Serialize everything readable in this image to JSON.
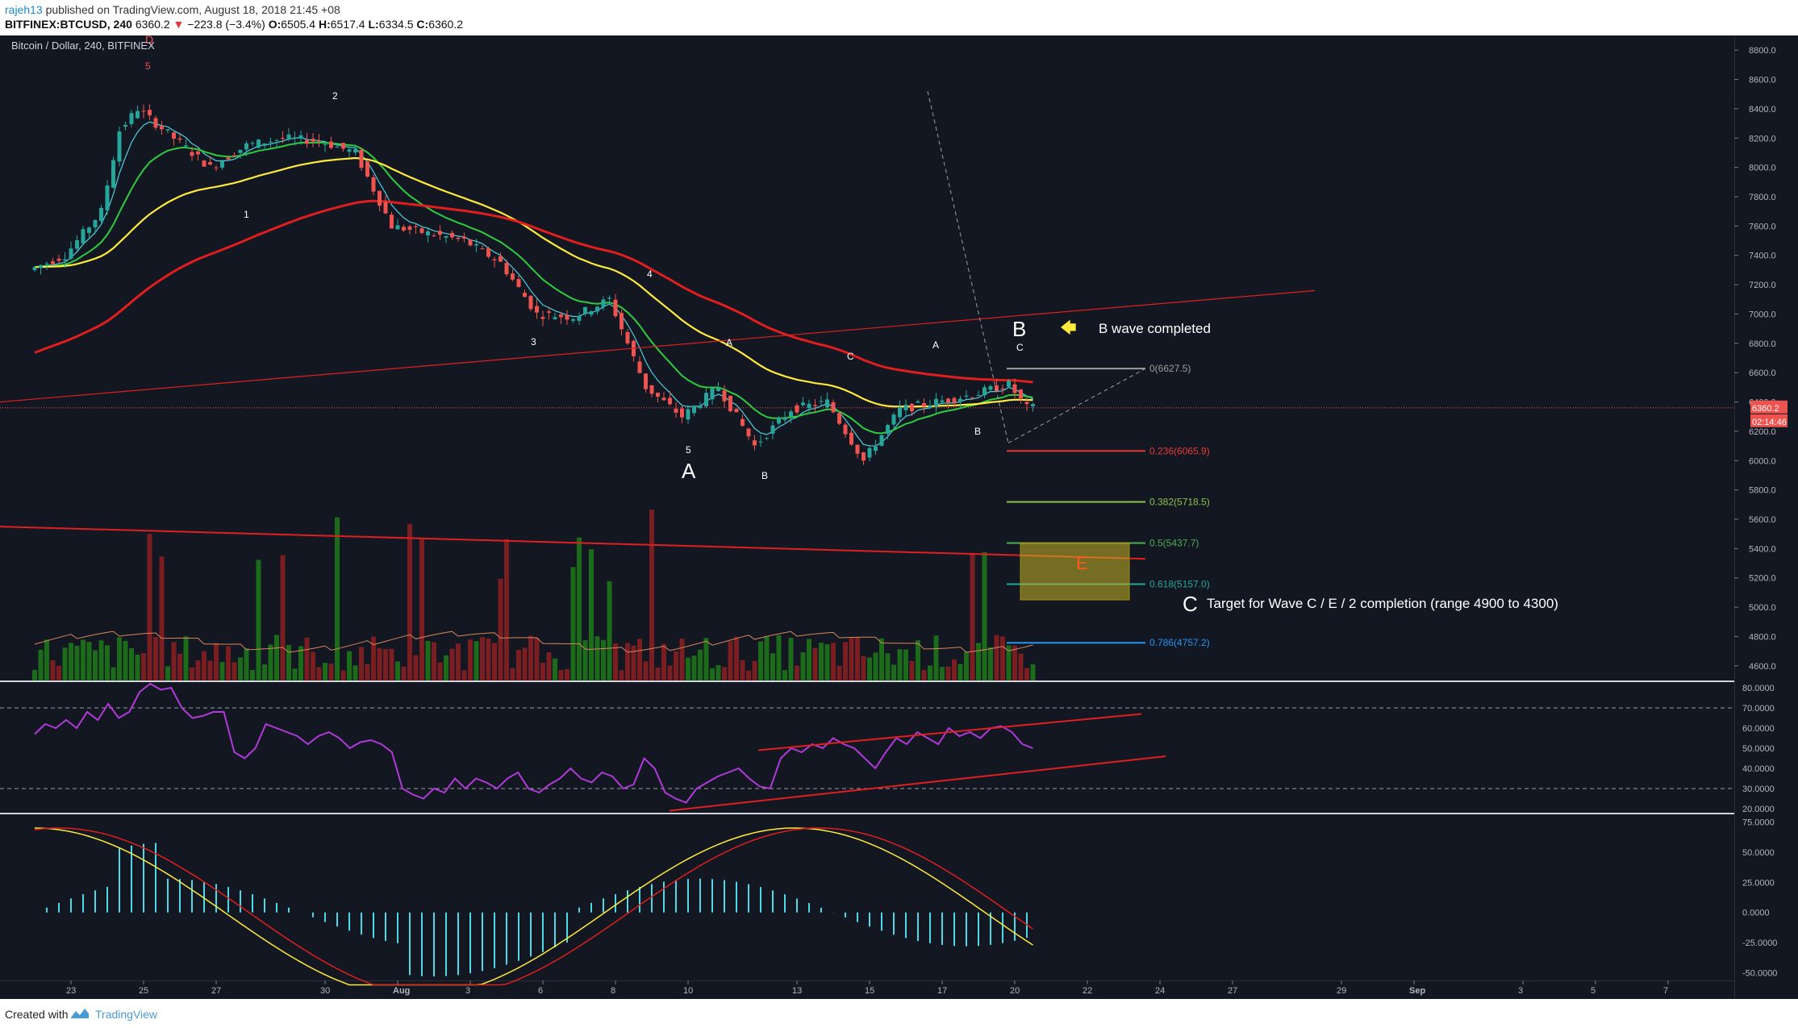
{
  "header": {
    "user": "rajeh13",
    "published": "published on TradingView.com, August 18, 2018 21:45 +08",
    "symbol": "BITFINEX:BTCUSD, 240",
    "last": "6360.2",
    "change": "−223.8 (−3.4%)",
    "o_label": "O:",
    "o": "6505.4",
    "h_label": "H:",
    "h": "6517.4",
    "l_label": "L:",
    "l": "6334.5",
    "c_label": "C:",
    "c": "6360.2"
  },
  "chart_title": "Bitcoin / Dollar, 240, BITFINEX",
  "footer": {
    "created": "Created with",
    "brand": "TradingView"
  },
  "colors": {
    "background": "#131722",
    "up": "#26a69a",
    "down": "#ef5350",
    "ma_fast": "#4dd0e1",
    "ma_green": "#2ecc40",
    "ma_yellow": "#ffeb3b",
    "ma_red": "#e01e1e",
    "rsi": "#b03ad8",
    "trendline": "#e02020",
    "macd_hist": "#4dd9e8",
    "target_box": "#c8b428"
  },
  "chart_data": [
    {
      "type": "candlestick",
      "pane": "price",
      "ylim": [
        4500,
        8900
      ],
      "y_ticks": [
        "8800.0",
        "8600.0",
        "8400.0",
        "8200.0",
        "8000.0",
        "7800.0",
        "7600.0",
        "7400.0",
        "7200.0",
        "7000.0",
        "6800.0",
        "6600.0",
        "6400.0",
        "6200.0",
        "6000.0",
        "5800.0",
        "5600.0",
        "5400.0",
        "5200.0",
        "5000.0",
        "4800.0",
        "4600.0"
      ],
      "x_ticks": [
        "23",
        "25",
        "27",
        "30",
        "Aug",
        "3",
        "6",
        "8",
        "10",
        "13",
        "15",
        "17",
        "20",
        "22",
        "24",
        "27",
        "29",
        "Sep",
        "3",
        "5",
        "7"
      ],
      "current_price": "6360.2",
      "countdown": "02:14:46",
      "price_path": [
        {
          "d": "Jul 22",
          "p": 7300
        },
        {
          "d": "Jul 23",
          "p": 7400
        },
        {
          "d": "Jul 24",
          "p": 7700
        },
        {
          "d": "Jul 24.5",
          "p": 8250
        },
        {
          "d": "Jul 25",
          "p": 8400
        },
        {
          "d": "Jul 26",
          "p": 8200
        },
        {
          "d": "Jul 27",
          "p": 8000
        },
        {
          "d": "Jul 28",
          "p": 8150
        },
        {
          "d": "Jul 29",
          "p": 8200
        },
        {
          "d": "Jul 30",
          "p": 8180
        },
        {
          "d": "Jul 31",
          "p": 8100
        },
        {
          "d": "Aug 1",
          "p": 7600
        },
        {
          "d": "Aug 2",
          "p": 7550
        },
        {
          "d": "Aug 3",
          "p": 7500
        },
        {
          "d": "Aug 4",
          "p": 7350
        },
        {
          "d": "Aug 5",
          "p": 7000
        },
        {
          "d": "Aug 6",
          "p": 6980
        },
        {
          "d": "Aug 7",
          "p": 7100
        },
        {
          "d": "Aug 8",
          "p": 6500
        },
        {
          "d": "Aug 9",
          "p": 6300
        },
        {
          "d": "Aug 10",
          "p": 6500
        },
        {
          "d": "Aug 11",
          "p": 6100
        },
        {
          "d": "Aug 12",
          "p": 6350
        },
        {
          "d": "Aug 13",
          "p": 6400
        },
        {
          "d": "Aug 14",
          "p": 6000
        },
        {
          "d": "Aug 15",
          "p": 6350
        },
        {
          "d": "Aug 16",
          "p": 6400
        },
        {
          "d": "Aug 17",
          "p": 6450
        },
        {
          "d": "Aug 18",
          "p": 6520
        },
        {
          "d": "Aug 18.5",
          "p": 6360
        }
      ],
      "fibonacci": [
        {
          "label": "0(6627.5)",
          "value": 6627.5,
          "color": "#9e9e9e"
        },
        {
          "label": "0.236(6065.9)",
          "value": 6065.9,
          "color": "#e53935"
        },
        {
          "label": "0.382(5718.5)",
          "value": 5718.5,
          "color": "#8bc34a"
        },
        {
          "label": "0.5(5437.7)",
          "value": 5437.7,
          "color": "#4caf50"
        },
        {
          "label": "0.618(5157.0)",
          "value": 5157.0,
          "color": "#26a69a"
        },
        {
          "label": "0.786(4757.2)",
          "value": 4757.2,
          "color": "#2196f3"
        }
      ],
      "wave_labels": [
        "D",
        "5",
        "2",
        "1",
        "3",
        "4",
        "5",
        "A",
        "A",
        "B",
        "C",
        "A",
        "B",
        "B",
        "C",
        "E",
        "C"
      ],
      "annotations": {
        "b_completed": "B wave completed",
        "target": "Target for Wave C / E / 2 completion (range 4900 to 4300)"
      }
    },
    {
      "type": "line",
      "pane": "rsi",
      "name": "RSI",
      "ylim": [
        18,
        82
      ],
      "y_ticks": [
        "80.0000",
        "70.0000",
        "60.0000",
        "50.0000",
        "40.0000",
        "30.0000",
        "20.0000"
      ],
      "levels": [
        70,
        30
      ],
      "values": [
        57,
        62,
        60,
        64,
        60,
        68,
        64,
        72,
        65,
        68,
        78,
        82,
        79,
        80,
        70,
        65,
        66,
        68,
        68,
        48,
        45,
        50,
        62,
        60,
        58,
        56,
        52,
        56,
        58,
        55,
        50,
        53,
        54,
        52,
        48,
        30,
        27,
        25,
        30,
        28,
        35,
        30,
        35,
        33,
        30,
        35,
        38,
        30,
        28,
        32,
        35,
        40,
        35,
        33,
        38,
        36,
        30,
        32,
        45,
        40,
        28,
        25,
        23,
        30,
        33,
        36,
        38,
        40,
        35,
        31,
        30,
        45,
        50,
        48,
        52,
        50,
        55,
        52,
        50,
        45,
        40,
        48,
        55,
        52,
        58,
        55,
        52,
        60,
        56,
        58,
        55,
        60,
        61,
        58,
        52,
        50
      ]
    },
    {
      "type": "bar",
      "pane": "macd",
      "name": "MACD",
      "ylim": [
        -55,
        80
      ],
      "y_ticks": [
        "75.0000",
        "50.0000",
        "25.0000",
        "0.0000",
        "-25.0000",
        "-50.0000"
      ]
    }
  ]
}
